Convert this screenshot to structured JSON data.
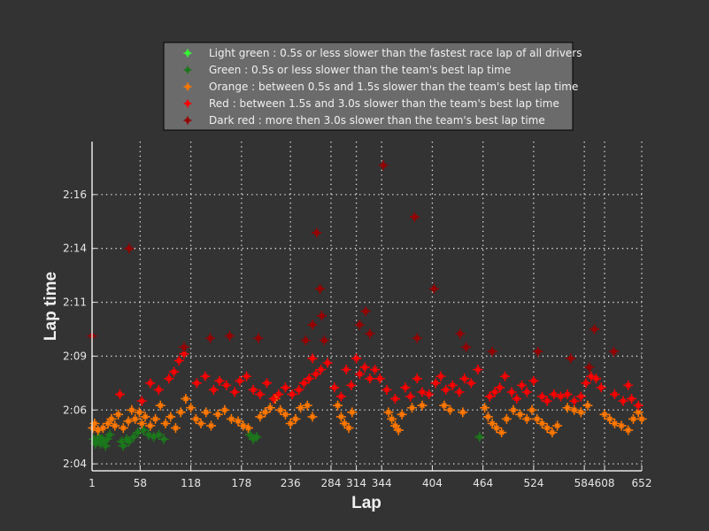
{
  "chart_data": {
    "type": "scatter",
    "title": "",
    "xlabel": "Lap",
    "ylabel": "Lap time",
    "xlim": [
      1,
      652
    ],
    "ylim": [
      123.69,
      138.36
    ],
    "grid": true,
    "legend_position": "top-center",
    "x_ticks": [
      1,
      58,
      118,
      178,
      236,
      284,
      314,
      344,
      404,
      464,
      524,
      584,
      608,
      652
    ],
    "y_ticks": [
      {
        "value": 124.0,
        "label": "2:04"
      },
      {
        "value": 126.4,
        "label": "2:06"
      },
      {
        "value": 128.8,
        "label": "2:09"
      },
      {
        "value": 131.2,
        "label": "2:11"
      },
      {
        "value": 133.6,
        "label": "2:14"
      },
      {
        "value": 136.0,
        "label": "2:16"
      }
    ],
    "series": [
      {
        "name": "Light green : 0.5s or less slower than the fastest race lap of all drivers",
        "color": "#33ff33",
        "points": []
      },
      {
        "name": "Green : 0.5s or less slower than the team's best lap time",
        "color": "#1b781b",
        "points": [
          [
            3,
            125.1
          ],
          [
            5,
            124.9
          ],
          [
            7,
            125.0
          ],
          [
            9,
            125.2
          ],
          [
            11,
            124.9
          ],
          [
            13,
            125.1
          ],
          [
            15,
            125.0
          ],
          [
            17,
            124.8
          ],
          [
            19,
            125.1
          ],
          [
            22,
            125.3
          ],
          [
            36,
            125.0
          ],
          [
            38,
            124.8
          ],
          [
            42,
            125.1
          ],
          [
            45,
            125.0
          ],
          [
            50,
            125.2
          ],
          [
            55,
            125.4
          ],
          [
            62,
            125.5
          ],
          [
            68,
            125.3
          ],
          [
            74,
            125.2
          ],
          [
            80,
            125.3
          ],
          [
            86,
            125.1
          ],
          [
            188,
            125.3
          ],
          [
            192,
            125.1
          ],
          [
            196,
            125.2
          ],
          [
            460,
            125.2
          ]
        ]
      },
      {
        "name": "Orange : between 0.5s and 1.5s slower than the team's best lap time",
        "color": "#ff7700",
        "points": [
          [
            2,
            125.6
          ],
          [
            4,
            125.8
          ],
          [
            8,
            125.5
          ],
          [
            14,
            125.6
          ],
          [
            20,
            125.8
          ],
          [
            24,
            126.0
          ],
          [
            28,
            125.7
          ],
          [
            32,
            126.2
          ],
          [
            38,
            125.6
          ],
          [
            44,
            125.9
          ],
          [
            48,
            126.4
          ],
          [
            52,
            126.0
          ],
          [
            57,
            126.3
          ],
          [
            60,
            125.8
          ],
          [
            64,
            126.1
          ],
          [
            70,
            125.7
          ],
          [
            76,
            126.0
          ],
          [
            82,
            126.6
          ],
          [
            88,
            125.8
          ],
          [
            94,
            126.1
          ],
          [
            100,
            125.6
          ],
          [
            106,
            126.3
          ],
          [
            112,
            126.9
          ],
          [
            118,
            126.5
          ],
          [
            124,
            126.0
          ],
          [
            130,
            125.8
          ],
          [
            136,
            126.3
          ],
          [
            142,
            125.7
          ],
          [
            150,
            126.2
          ],
          [
            158,
            126.4
          ],
          [
            166,
            126.0
          ],
          [
            174,
            125.9
          ],
          [
            180,
            125.7
          ],
          [
            186,
            125.6
          ],
          [
            200,
            126.1
          ],
          [
            206,
            126.3
          ],
          [
            212,
            126.5
          ],
          [
            218,
            126.9
          ],
          [
            224,
            126.4
          ],
          [
            230,
            126.2
          ],
          [
            236,
            125.8
          ],
          [
            242,
            126.0
          ],
          [
            248,
            126.5
          ],
          [
            256,
            126.6
          ],
          [
            262,
            126.1
          ],
          [
            292,
            126.6
          ],
          [
            296,
            126.1
          ],
          [
            300,
            125.8
          ],
          [
            305,
            125.6
          ],
          [
            309,
            126.3
          ],
          [
            352,
            126.3
          ],
          [
            356,
            126.0
          ],
          [
            360,
            125.7
          ],
          [
            364,
            125.5
          ],
          [
            368,
            126.2
          ],
          [
            380,
            126.5
          ],
          [
            392,
            126.6
          ],
          [
            418,
            126.6
          ],
          [
            425,
            126.4
          ],
          [
            440,
            126.3
          ],
          [
            466,
            126.5
          ],
          [
            470,
            126.1
          ],
          [
            475,
            125.8
          ],
          [
            480,
            125.6
          ],
          [
            486,
            125.4
          ],
          [
            492,
            126.0
          ],
          [
            500,
            126.4
          ],
          [
            508,
            126.2
          ],
          [
            516,
            126.0
          ],
          [
            522,
            126.4
          ],
          [
            528,
            126.0
          ],
          [
            534,
            125.8
          ],
          [
            540,
            125.6
          ],
          [
            546,
            125.4
          ],
          [
            552,
            125.7
          ],
          [
            564,
            126.5
          ],
          [
            572,
            126.4
          ],
          [
            580,
            126.3
          ],
          [
            588,
            126.6
          ],
          [
            608,
            126.2
          ],
          [
            614,
            126.0
          ],
          [
            620,
            125.8
          ],
          [
            628,
            125.7
          ],
          [
            636,
            125.5
          ],
          [
            642,
            126.0
          ],
          [
            648,
            126.3
          ],
          [
            652,
            126.0
          ]
        ]
      },
      {
        "name": "Red : between 1.5s and 3.0s slower than the team's best lap time",
        "color": "#ff0000",
        "points": [
          [
            34,
            127.1
          ],
          [
            60,
            126.8
          ],
          [
            70,
            127.6
          ],
          [
            80,
            127.3
          ],
          [
            92,
            127.8
          ],
          [
            98,
            128.1
          ],
          [
            104,
            128.6
          ],
          [
            110,
            128.9
          ],
          [
            125,
            127.6
          ],
          [
            135,
            127.9
          ],
          [
            145,
            127.3
          ],
          [
            152,
            127.7
          ],
          [
            160,
            127.5
          ],
          [
            170,
            127.2
          ],
          [
            176,
            127.7
          ],
          [
            184,
            127.9
          ],
          [
            192,
            127.3
          ],
          [
            200,
            127.1
          ],
          [
            208,
            127.6
          ],
          [
            216,
            126.9
          ],
          [
            222,
            127.1
          ],
          [
            230,
            127.4
          ],
          [
            238,
            127.1
          ],
          [
            246,
            127.3
          ],
          [
            252,
            127.6
          ],
          [
            258,
            127.8
          ],
          [
            262,
            128.7
          ],
          [
            266,
            128.0
          ],
          [
            272,
            128.2
          ],
          [
            280,
            128.5
          ],
          [
            288,
            127.4
          ],
          [
            296,
            127.0
          ],
          [
            302,
            128.2
          ],
          [
            308,
            127.5
          ],
          [
            314,
            128.7
          ],
          [
            318,
            128.0
          ],
          [
            324,
            128.3
          ],
          [
            330,
            127.8
          ],
          [
            336,
            128.2
          ],
          [
            342,
            127.8
          ],
          [
            350,
            127.3
          ],
          [
            360,
            126.9
          ],
          [
            372,
            127.4
          ],
          [
            378,
            127.0
          ],
          [
            386,
            127.8
          ],
          [
            392,
            127.2
          ],
          [
            400,
            127.1
          ],
          [
            408,
            127.6
          ],
          [
            414,
            127.9
          ],
          [
            420,
            127.3
          ],
          [
            428,
            127.5
          ],
          [
            436,
            127.2
          ],
          [
            442,
            127.8
          ],
          [
            450,
            127.6
          ],
          [
            458,
            128.2
          ],
          [
            472,
            127.0
          ],
          [
            478,
            127.2
          ],
          [
            484,
            127.4
          ],
          [
            490,
            127.9
          ],
          [
            498,
            127.2
          ],
          [
            504,
            126.9
          ],
          [
            510,
            127.5
          ],
          [
            516,
            127.2
          ],
          [
            524,
            127.7
          ],
          [
            534,
            127.0
          ],
          [
            540,
            126.8
          ],
          [
            548,
            127.1
          ],
          [
            556,
            127.0
          ],
          [
            564,
            127.1
          ],
          [
            572,
            126.8
          ],
          [
            580,
            127.0
          ],
          [
            586,
            127.6
          ],
          [
            592,
            127.9
          ],
          [
            598,
            127.8
          ],
          [
            604,
            127.4
          ],
          [
            620,
            127.1
          ],
          [
            630,
            126.8
          ],
          [
            636,
            127.5
          ],
          [
            640,
            126.9
          ],
          [
            648,
            126.6
          ]
        ]
      },
      {
        "name": "Dark red : more then 3.0s slower than the team's best lap time",
        "color": "#990000",
        "points": [
          [
            1,
            129.7
          ],
          [
            45,
            133.6
          ],
          [
            110,
            129.2
          ],
          [
            141,
            129.6
          ],
          [
            164,
            129.7
          ],
          [
            198,
            129.6
          ],
          [
            254,
            129.5
          ],
          [
            262,
            130.2
          ],
          [
            267,
            134.3
          ],
          [
            271,
            131.8
          ],
          [
            273,
            130.6
          ],
          [
            276,
            129.5
          ],
          [
            318,
            130.2
          ],
          [
            325,
            130.8
          ],
          [
            330,
            129.8
          ],
          [
            346,
            137.3
          ],
          [
            383,
            135.0
          ],
          [
            386,
            129.6
          ],
          [
            406,
            131.8
          ],
          [
            437,
            129.8
          ],
          [
            444,
            129.2
          ],
          [
            475,
            129.0
          ],
          [
            529,
            129.0
          ],
          [
            568,
            128.7
          ],
          [
            590,
            128.3
          ],
          [
            596,
            130.0
          ],
          [
            619,
            129.0
          ]
        ]
      }
    ]
  }
}
